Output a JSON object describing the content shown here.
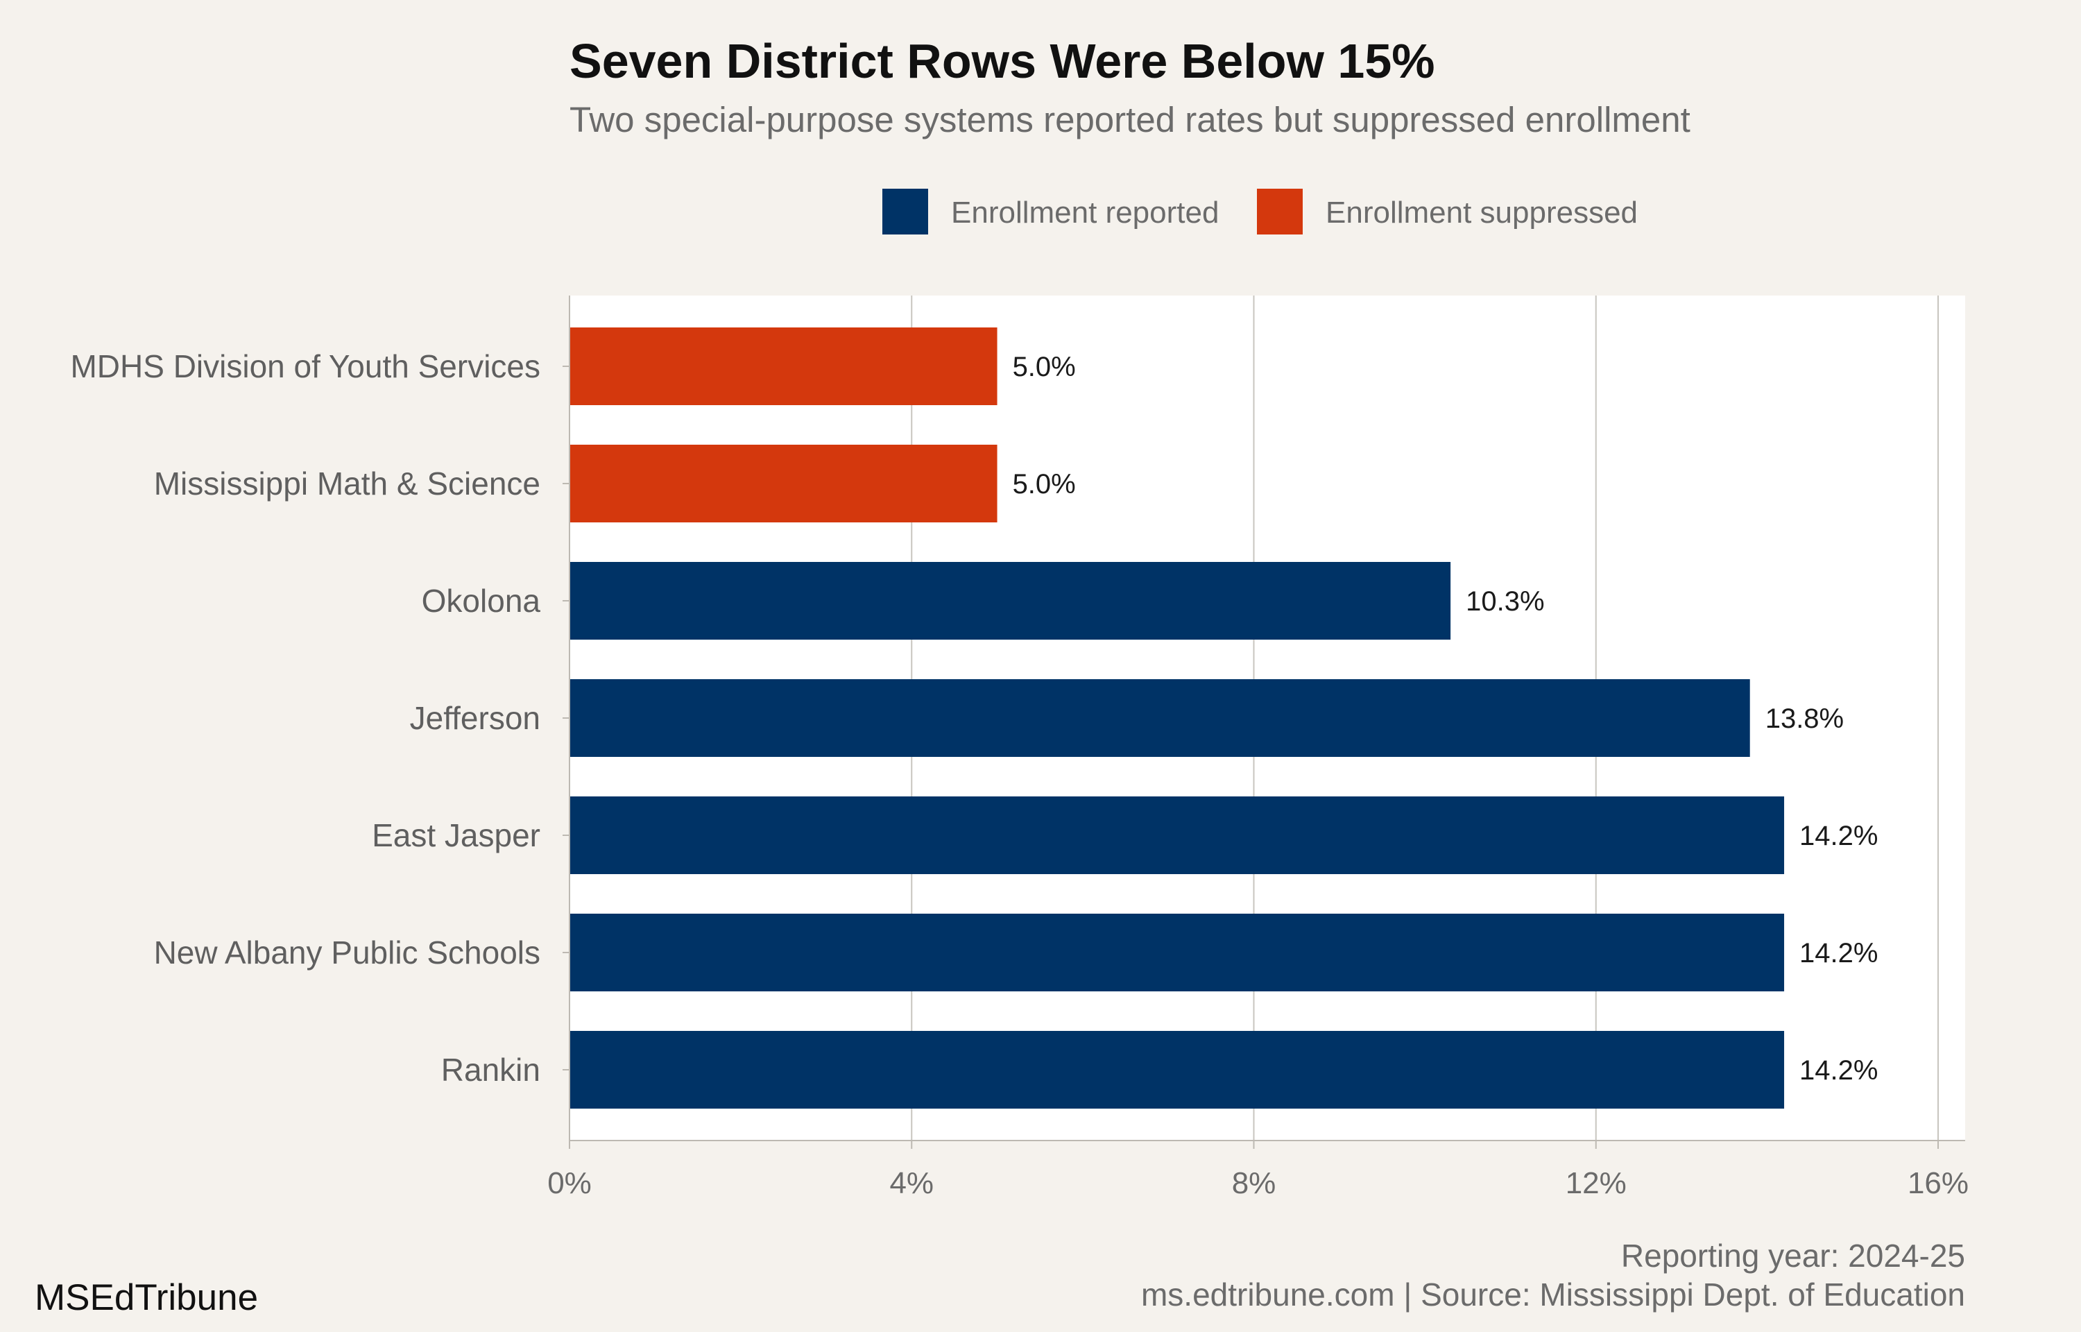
{
  "chart_data": {
    "type": "bar",
    "orientation": "horizontal",
    "title": "Seven District Rows Were Below 15%",
    "subtitle": "Two special-purpose systems reported rates but suppressed enrollment",
    "categories": [
      "MDHS Division of Youth Services",
      "Mississippi Math & Science",
      "Okolona",
      "Jefferson",
      "East Jasper",
      "New Albany Public Schools",
      "Rankin"
    ],
    "values": [
      5.0,
      5.0,
      10.3,
      13.8,
      14.2,
      14.2,
      14.2
    ],
    "data_labels": [
      "5.0%",
      "5.0%",
      "10.3%",
      "13.8%",
      "14.2%",
      "14.2%",
      "14.2%"
    ],
    "groups": [
      "suppressed",
      "suppressed",
      "reported",
      "reported",
      "reported",
      "reported",
      "reported"
    ],
    "legend": [
      {
        "key": "reported",
        "label": "Enrollment reported",
        "color": "#003366"
      },
      {
        "key": "suppressed",
        "label": "Enrollment suppressed",
        "color": "#d4380d"
      }
    ],
    "legend_position": "top",
    "xlim": [
      0,
      16
    ],
    "xticks": [
      0,
      4,
      8,
      12,
      16
    ],
    "xtick_labels": [
      "0%",
      "4%",
      "8%",
      "12%",
      "16%"
    ],
    "xlabel": "",
    "ylabel": "",
    "grid": "vertical"
  },
  "footer": {
    "brand": "MSEdTribune",
    "caption_line1": "Reporting year: 2024-25",
    "caption_line2": "ms.edtribune.com | Source: Mississippi Dept. of Education"
  },
  "colors": {
    "background": "#f5f2ed",
    "panel": "#ffffff",
    "gridline": "#c8c5bf"
  }
}
